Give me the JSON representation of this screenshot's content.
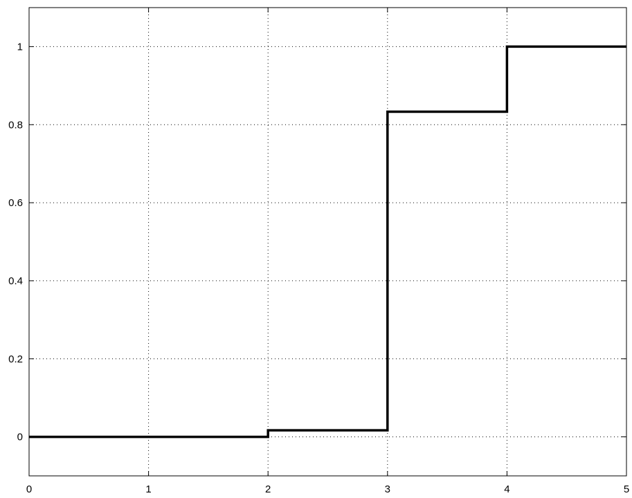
{
  "chart_data": {
    "type": "line",
    "step": "post",
    "title": "",
    "xlabel": "",
    "ylabel": "",
    "xlim": [
      0,
      5
    ],
    "ylim": [
      -0.1,
      1.1
    ],
    "xticks": [
      0,
      1,
      2,
      3,
      4,
      5
    ],
    "yticks": [
      0,
      0.2,
      0.4,
      0.6,
      0.8,
      1
    ],
    "xtick_labels": [
      "0",
      "1",
      "2",
      "3",
      "4",
      "5"
    ],
    "ytick_labels": [
      "0",
      "0.2",
      "0.4",
      "0.6",
      "0.8",
      "1"
    ],
    "grid": true,
    "grid_style": "dotted",
    "series": [
      {
        "color": "#000000",
        "x": [
          0,
          2,
          3,
          4,
          5
        ],
        "y": [
          0,
          0.0167,
          0.8333,
          1,
          1
        ]
      }
    ]
  }
}
